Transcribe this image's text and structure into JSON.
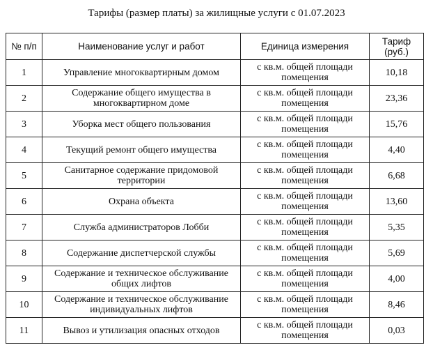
{
  "title": "Тарифы (размер платы) за жилищные услуги с 01.07.2023",
  "table": {
    "header": [
      "№ п/п",
      "Наименование услуг и работ",
      "Единица измерения",
      "Тариф (руб.)"
    ],
    "rows": [
      [
        "1",
        "Управление многоквартирным домом",
        "с кв.м. общей площади помещения",
        "10,18"
      ],
      [
        "2",
        "Содержание общего имущества в многоквартирном доме",
        "с кв.м. общей площади помещения",
        "23,36"
      ],
      [
        "3",
        "Уборка мест общего пользования",
        "с кв.м. общей площади помещения",
        "15,76"
      ],
      [
        "4",
        "Текущий ремонт общего имущества",
        "с кв.м. общей площади помещения",
        "4,40"
      ],
      [
        "5",
        "Санитарное содержание придомовой территории",
        "с кв.м. общей площади помещения",
        "6,68"
      ],
      [
        "6",
        "Охрана объекта",
        "с кв.м. общей площади помещения",
        "13,60"
      ],
      [
        "7",
        "Служба администраторов Лобби",
        "с кв.м. общей площади помещения",
        "5,35"
      ],
      [
        "8",
        "Содержание диспетчерской службы",
        "с кв.м. общей площади помещения",
        "5,69"
      ],
      [
        "9",
        "Содержание и техническое обслуживание общих лифтов",
        "с кв.м. общей площади помещения",
        "4,00"
      ],
      [
        "10",
        "Содержание и техническое обслуживание индивидуальных лифтов",
        "с кв.м. общей площади помещения",
        "8,46"
      ],
      [
        "11",
        "Вывоз и утилизация опасных отходов",
        "с кв.м. общей площади помещения",
        "0,03"
      ]
    ]
  }
}
